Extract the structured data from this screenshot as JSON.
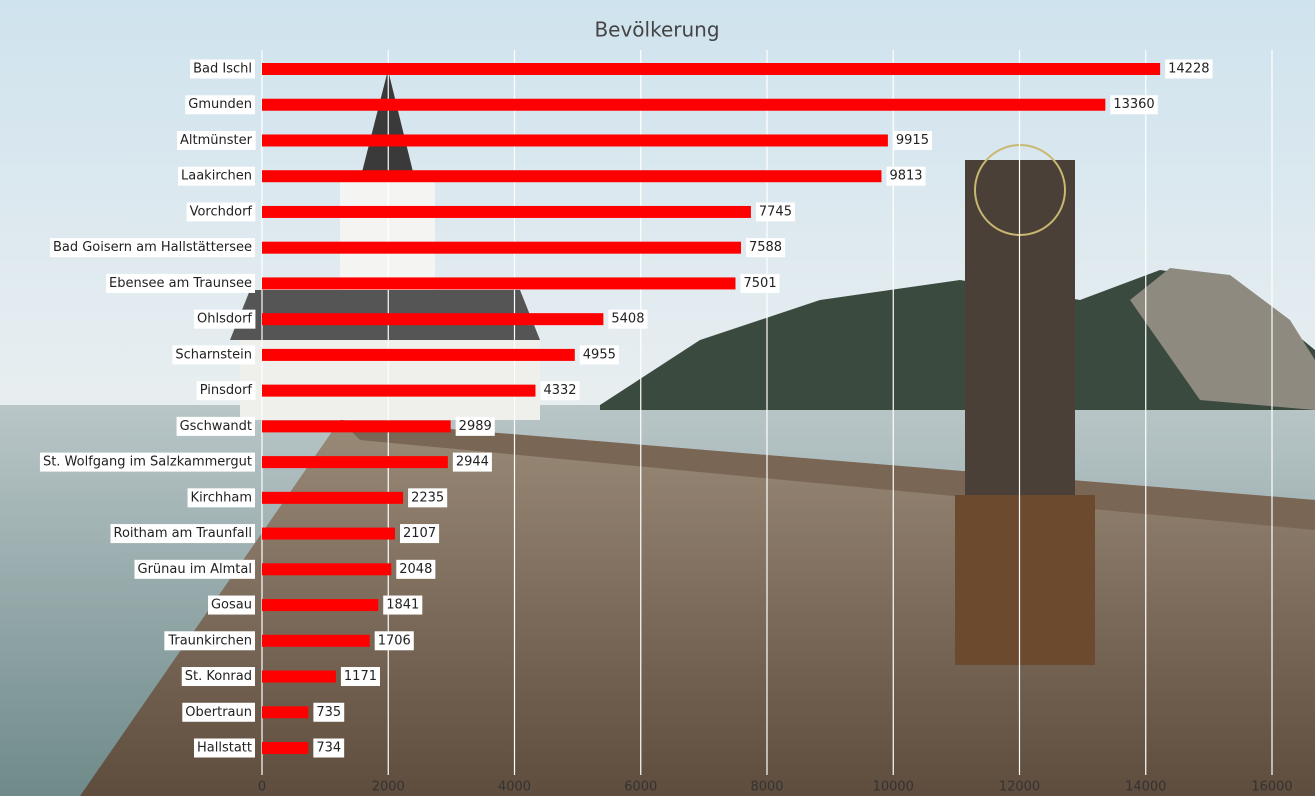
{
  "chart_data": {
    "type": "bar",
    "orientation": "horizontal",
    "title": "Bevölkerung",
    "categories": [
      "Bad Ischl",
      "Gmunden",
      "Altmünster",
      "Laakirchen",
      "Vorchdorf",
      "Bad Goisern am Hallstättersee",
      "Ebensee am Traunsee",
      "Ohlsdorf",
      "Scharnstein",
      "Pinsdorf",
      "Gschwandt",
      "St. Wolfgang im Salzkammergut",
      "Kirchham",
      "Roitham am Traunfall",
      "Grünau im Almtal",
      "Gosau",
      "Traunkirchen",
      "St. Konrad",
      "Obertraun",
      "Hallstatt"
    ],
    "values": [
      14228,
      13360,
      9915,
      9813,
      7745,
      7588,
      7501,
      5408,
      4955,
      4332,
      2989,
      2944,
      2235,
      2107,
      2048,
      1841,
      1706,
      1171,
      735,
      734
    ],
    "color": "#ff0000",
    "xlim": [
      0,
      16000
    ],
    "xticks": [
      0,
      2000,
      4000,
      6000,
      8000,
      10000,
      12000,
      14000,
      16000
    ],
    "grid": true
  }
}
